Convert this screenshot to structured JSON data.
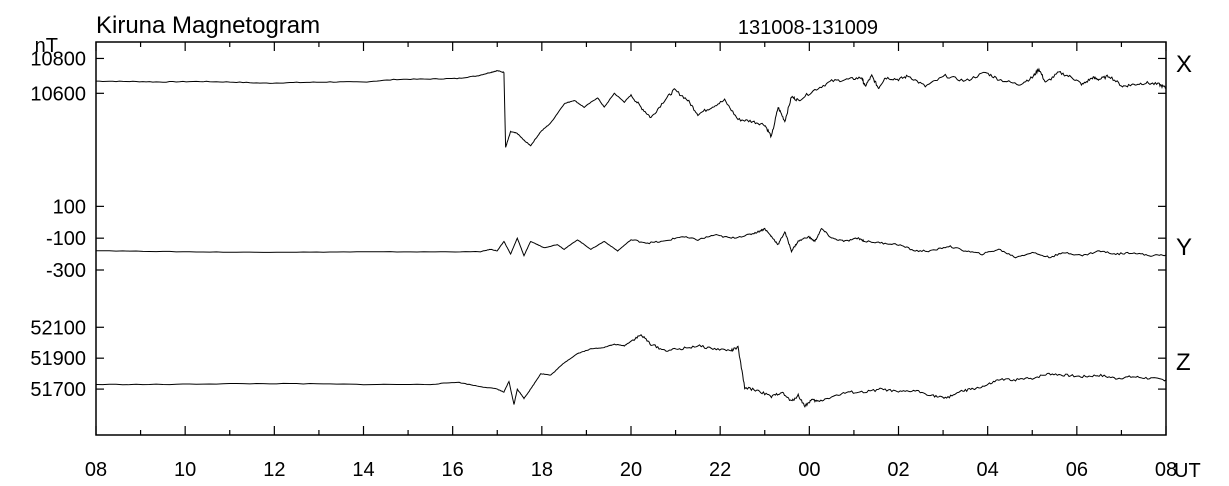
{
  "header": {
    "title": "Kiruna Magnetogram",
    "date_range": "131008-131009",
    "unit": "nT"
  },
  "chart_data": {
    "type": "line",
    "title": "Kiruna Magnetogram",
    "subtitle": "131008-131009",
    "x_unit": "UT",
    "x_tick_labels": [
      "08",
      "10",
      "12",
      "14",
      "16",
      "18",
      "20",
      "22",
      "00",
      "02",
      "04",
      "06",
      "08"
    ],
    "x_range_hours": [
      0,
      24
    ],
    "grid": false,
    "line_color": "#000000",
    "series": [
      {
        "name": "X",
        "y_tick_labels": [
          "10800",
          "10600"
        ],
        "y_ticks": [
          10800,
          10600
        ],
        "y_range": [
          10160,
          10860
        ],
        "points": [
          [
            0,
            10670
          ],
          [
            1,
            10668
          ],
          [
            2,
            10665
          ],
          [
            3,
            10668
          ],
          [
            4,
            10665
          ],
          [
            5,
            10658
          ],
          [
            6,
            10662
          ],
          [
            7,
            10665
          ],
          [
            8,
            10665
          ],
          [
            9,
            10680
          ],
          [
            10,
            10682
          ],
          [
            10.8,
            10685
          ],
          [
            11.4,
            10700
          ],
          [
            11.8,
            10720
          ],
          [
            12,
            10730
          ],
          [
            12.2,
            10720
          ],
          [
            12.25,
            10290
          ],
          [
            12.4,
            10380
          ],
          [
            12.6,
            10370
          ],
          [
            12.8,
            10330
          ],
          [
            13,
            10300
          ],
          [
            13.3,
            10380
          ],
          [
            13.6,
            10430
          ],
          [
            14,
            10540
          ],
          [
            14.3,
            10560
          ],
          [
            14.6,
            10520
          ],
          [
            15,
            10575
          ],
          [
            15.2,
            10520
          ],
          [
            15.5,
            10600
          ],
          [
            15.8,
            10550
          ],
          [
            16,
            10590
          ],
          [
            16.3,
            10520
          ],
          [
            16.6,
            10460
          ],
          [
            17,
            10560
          ],
          [
            17.3,
            10620
          ],
          [
            17.7,
            10560
          ],
          [
            18,
            10480
          ],
          [
            18.4,
            10520
          ],
          [
            18.8,
            10560
          ],
          [
            19.2,
            10450
          ],
          [
            19.6,
            10440
          ],
          [
            20,
            10420
          ],
          [
            20.2,
            10350
          ],
          [
            20.4,
            10520
          ],
          [
            20.6,
            10440
          ],
          [
            20.8,
            10580
          ],
          [
            21,
            10560
          ],
          [
            21.5,
            10620
          ],
          [
            22,
            10670
          ],
          [
            22.5,
            10680
          ],
          [
            22.9,
            10690
          ],
          [
            23,
            10640
          ],
          [
            23.2,
            10700
          ],
          [
            23.4,
            10630
          ],
          [
            23.6,
            10690
          ],
          [
            24,
            10680
          ],
          [
            24.3,
            10700
          ],
          [
            24.8,
            10640
          ],
          [
            25.4,
            10700
          ],
          [
            26,
            10670
          ],
          [
            26.6,
            10720
          ],
          [
            27,
            10680
          ],
          [
            27.6,
            10650
          ],
          [
            28,
            10690
          ],
          [
            28.2,
            10740
          ],
          [
            28.4,
            10660
          ],
          [
            28.8,
            10720
          ],
          [
            29.2,
            10690
          ],
          [
            29.5,
            10650
          ],
          [
            29.8,
            10690
          ],
          [
            30,
            10680
          ],
          [
            30.3,
            10700
          ],
          [
            30.7,
            10640
          ],
          [
            31,
            10650
          ],
          [
            31.4,
            10660
          ],
          [
            31.8,
            10650
          ],
          [
            32,
            10630
          ]
        ]
      },
      {
        "name": "Y",
        "y_tick_labels": [
          "100",
          "-100",
          "-300"
        ],
        "y_ticks": [
          100,
          -100,
          -300
        ],
        "y_range": [
          -300,
          140
        ],
        "points": [
          [
            0,
            -178
          ],
          [
            2,
            -184
          ],
          [
            4,
            -188
          ],
          [
            6,
            -188
          ],
          [
            8,
            -186
          ],
          [
            10,
            -186
          ],
          [
            11.5,
            -185
          ],
          [
            11.8,
            -170
          ],
          [
            12,
            -180
          ],
          [
            12.2,
            -120
          ],
          [
            12.4,
            -200
          ],
          [
            12.6,
            -100
          ],
          [
            12.8,
            -210
          ],
          [
            13,
            -120
          ],
          [
            13.4,
            -160
          ],
          [
            13.8,
            -140
          ],
          [
            14,
            -170
          ],
          [
            14.4,
            -110
          ],
          [
            14.8,
            -170
          ],
          [
            15.2,
            -120
          ],
          [
            15.6,
            -180
          ],
          [
            16,
            -110
          ],
          [
            16.5,
            -130
          ],
          [
            17,
            -120
          ],
          [
            17.5,
            -90
          ],
          [
            18,
            -110
          ],
          [
            18.5,
            -80
          ],
          [
            19,
            -100
          ],
          [
            19.5,
            -80
          ],
          [
            19.8,
            -60
          ],
          [
            20,
            -40
          ],
          [
            20.2,
            -90
          ],
          [
            20.4,
            -140
          ],
          [
            20.6,
            -60
          ],
          [
            20.8,
            -180
          ],
          [
            21,
            -120
          ],
          [
            21.3,
            -90
          ],
          [
            21.5,
            -120
          ],
          [
            21.7,
            -40
          ],
          [
            22,
            -100
          ],
          [
            22.4,
            -120
          ],
          [
            22.8,
            -100
          ],
          [
            23,
            -120
          ],
          [
            23.5,
            -130
          ],
          [
            24,
            -140
          ],
          [
            24.5,
            -180
          ],
          [
            25,
            -180
          ],
          [
            25.5,
            -150
          ],
          [
            26,
            -180
          ],
          [
            26.5,
            -200
          ],
          [
            27,
            -170
          ],
          [
            27.5,
            -220
          ],
          [
            28,
            -190
          ],
          [
            28.5,
            -220
          ],
          [
            29,
            -190
          ],
          [
            29.5,
            -210
          ],
          [
            30,
            -180
          ],
          [
            30.5,
            -200
          ],
          [
            31,
            -190
          ],
          [
            31.5,
            -210
          ],
          [
            32,
            -205
          ]
        ]
      },
      {
        "name": "Z",
        "y_tick_labels": [
          "52100",
          "51900",
          "51700"
        ],
        "y_ticks": [
          52100,
          51900,
          51700
        ],
        "y_range": [
          51500,
          52160
        ],
        "points": [
          [
            0,
            51730
          ],
          [
            2,
            51730
          ],
          [
            4,
            51735
          ],
          [
            6,
            51735
          ],
          [
            8,
            51730
          ],
          [
            10,
            51730
          ],
          [
            10.8,
            51745
          ],
          [
            11.4,
            51720
          ],
          [
            12,
            51700
          ],
          [
            12.2,
            51680
          ],
          [
            12.35,
            51750
          ],
          [
            12.5,
            51600
          ],
          [
            12.6,
            51700
          ],
          [
            12.8,
            51640
          ],
          [
            13,
            51700
          ],
          [
            13.3,
            51800
          ],
          [
            13.6,
            51790
          ],
          [
            14,
            51870
          ],
          [
            14.4,
            51930
          ],
          [
            14.8,
            51960
          ],
          [
            15.2,
            51970
          ],
          [
            15.5,
            51990
          ],
          [
            15.8,
            51980
          ],
          [
            16,
            52010
          ],
          [
            16.3,
            52050
          ],
          [
            16.6,
            51990
          ],
          [
            17,
            51950
          ],
          [
            17.5,
            51960
          ],
          [
            18,
            51980
          ],
          [
            18.5,
            51960
          ],
          [
            19,
            51950
          ],
          [
            19.2,
            51970
          ],
          [
            19.4,
            51710
          ],
          [
            19.8,
            51690
          ],
          [
            20.2,
            51650
          ],
          [
            20.5,
            51680
          ],
          [
            20.8,
            51620
          ],
          [
            21,
            51660
          ],
          [
            21.2,
            51590
          ],
          [
            21.4,
            51630
          ],
          [
            21.6,
            51620
          ],
          [
            22,
            51650
          ],
          [
            22.5,
            51680
          ],
          [
            23,
            51680
          ],
          [
            23.5,
            51700
          ],
          [
            24,
            51680
          ],
          [
            24.5,
            51690
          ],
          [
            25,
            51660
          ],
          [
            25.4,
            51640
          ],
          [
            25.8,
            51680
          ],
          [
            26.2,
            51700
          ],
          [
            26.6,
            51720
          ],
          [
            27,
            51760
          ],
          [
            27.5,
            51760
          ],
          [
            28,
            51770
          ],
          [
            28.5,
            51800
          ],
          [
            29,
            51790
          ],
          [
            29.5,
            51780
          ],
          [
            30,
            51790
          ],
          [
            30.5,
            51770
          ],
          [
            31,
            51780
          ],
          [
            31.5,
            51770
          ],
          [
            32,
            51760
          ]
        ]
      }
    ]
  }
}
